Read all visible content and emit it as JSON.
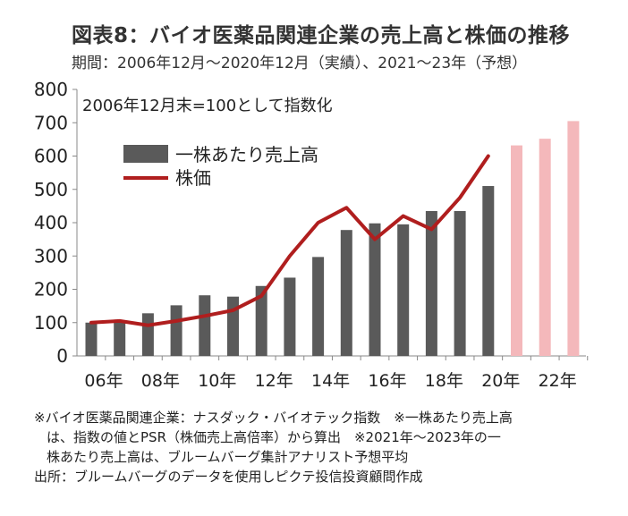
{
  "title": "図表8：バイオ医薬品関連企業の売上高と株価の推移",
  "subtitle": "期間：2006年12月～2020年12月（実績）、2021～23年（予想）",
  "notes": [
    "※バイオ医薬品関連企業：ナスダック・バイオテック指数　※一株あたり売上高",
    "は、指数の値とPSR（株価売上高倍率）から算出　※2021年～2023年の一",
    "株あたり売上高は、ブルームバーグ集計アナリスト予想平均",
    "出所：ブルームバーグのデータを使用しピクテ投信投資顧問作成"
  ],
  "colors": {
    "bar_actual": "#5a5a5a",
    "bar_forecast": "#f4b8bb",
    "line": "#b01e1e",
    "axis": "#888888",
    "text": "#222222"
  },
  "chart_data": {
    "type": "bar",
    "annotation": "2006年12月末=100として指数化",
    "ylim": [
      0,
      800
    ],
    "yticks": [
      "0",
      "100",
      "200",
      "300",
      "400",
      "500",
      "600",
      "700",
      "800"
    ],
    "xticks": [
      {
        "year": 2006,
        "label": "06年"
      },
      {
        "year": 2008,
        "label": "08年"
      },
      {
        "year": 2010,
        "label": "10年"
      },
      {
        "year": 2012,
        "label": "12年"
      },
      {
        "year": 2014,
        "label": "14年"
      },
      {
        "year": 2016,
        "label": "16年"
      },
      {
        "year": 2018,
        "label": "18年"
      },
      {
        "year": 2020,
        "label": "20年"
      },
      {
        "year": 2022,
        "label": "22年"
      }
    ],
    "legend": {
      "position": "top-left",
      "bar_label": "一株あたり売上高",
      "line_label": "株価"
    },
    "series": [
      {
        "name": "一株あたり売上高",
        "kind": "bar",
        "x": [
          2006,
          2007,
          2008,
          2009,
          2010,
          2011,
          2012,
          2013,
          2014,
          2015,
          2016,
          2017,
          2018,
          2019,
          2020,
          2021,
          2022,
          2023
        ],
        "values": [
          100,
          105,
          128,
          152,
          182,
          178,
          210,
          235,
          297,
          378,
          398,
          395,
          435,
          435,
          510,
          632,
          652,
          705
        ],
        "forecast": [
          false,
          false,
          false,
          false,
          false,
          false,
          false,
          false,
          false,
          false,
          false,
          false,
          false,
          false,
          false,
          true,
          true,
          true
        ]
      },
      {
        "name": "株価",
        "kind": "line",
        "x": [
          2006,
          2007,
          2008,
          2009,
          2010,
          2011,
          2012,
          2013,
          2014,
          2015,
          2016,
          2017,
          2018,
          2019,
          2020
        ],
        "values": [
          100,
          105,
          92,
          105,
          120,
          137,
          180,
          300,
          400,
          445,
          350,
          420,
          380,
          475,
          600
        ]
      }
    ]
  }
}
